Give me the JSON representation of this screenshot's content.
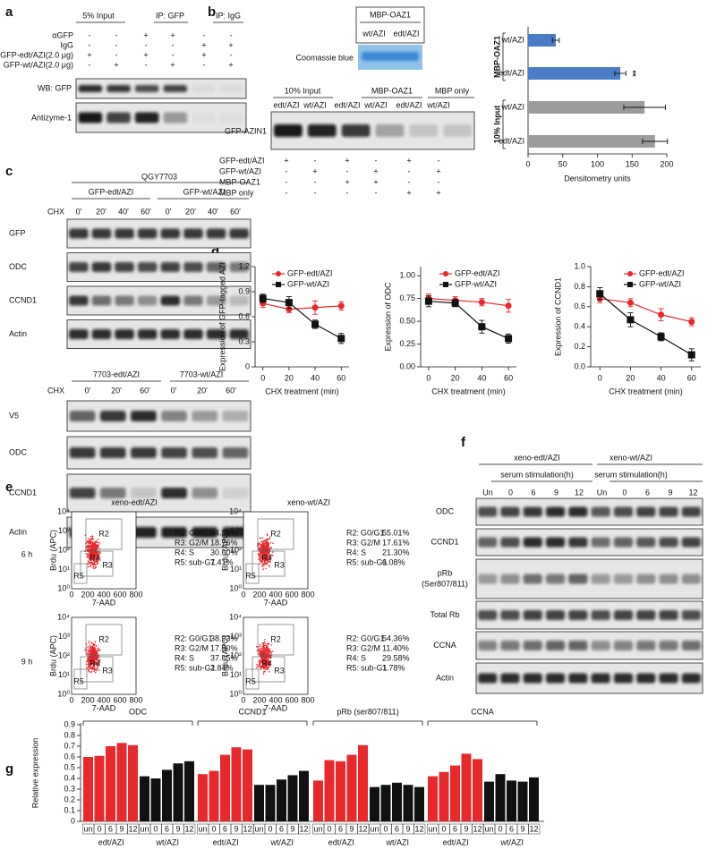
{
  "panel_labels": [
    "a",
    "b",
    "c",
    "d",
    "e",
    "f",
    "g"
  ],
  "panel_a": {
    "headers": [
      "5% Input",
      "IP: GFP",
      "IP: IgG"
    ],
    "rows": [
      {
        "label": "αGFP",
        "signs": [
          "-",
          "-",
          "+",
          "+",
          "-",
          "-"
        ]
      },
      {
        "label": "IgG",
        "signs": [
          "-",
          "-",
          "-",
          "-",
          "+",
          "+"
        ]
      },
      {
        "label": "GFP-edt/AZI(2.0 μg)",
        "signs": [
          "+",
          "-",
          "+",
          "-",
          "+",
          "-"
        ]
      },
      {
        "label": "GFP-wt/AZI(2.0 μg)",
        "signs": [
          "-",
          "+",
          "-",
          "+",
          "-",
          "+"
        ]
      }
    ],
    "blots": [
      "WB: GFP",
      "Antizyme-1"
    ]
  },
  "panel_b": {
    "gel_title": "MBP-OAZ1",
    "gel_lanes": [
      "wt/AZI",
      "edt/AZI"
    ],
    "gel_label": "Coomassie blue",
    "headers": [
      "10% Input",
      "MBP-OAZ1",
      "MBP only"
    ],
    "lanes": [
      "edt/AZI",
      "wt/AZI",
      "edt/AZI",
      "wt/AZI",
      "edt/AZI",
      "wt/AZI"
    ],
    "blot_label": "GFP-AZIN1",
    "rows": [
      {
        "label": "GFP-edt/AZI",
        "signs": [
          "+",
          "-",
          "+",
          "-",
          "+",
          "-"
        ]
      },
      {
        "label": "GFP-wt/AZI",
        "signs": [
          "-",
          "+",
          "-",
          "+",
          "-",
          "+"
        ]
      },
      {
        "label": "MBP-OAZ1",
        "signs": [
          "-",
          "-",
          "+",
          "+",
          "-",
          "-"
        ]
      },
      {
        "label": "MBP only",
        "signs": [
          "-",
          "-",
          "-",
          "-",
          "+",
          "+"
        ]
      }
    ]
  },
  "panel_c": {
    "title": "QGY7703",
    "top": {
      "groups": [
        "GFP-edt/AZI",
        "GFP-wt/AZI"
      ],
      "chx": "CHX",
      "times": [
        "0'",
        "20'",
        "40'",
        "60'",
        "0'",
        "20'",
        "40'",
        "60'"
      ],
      "blots": [
        "GFP",
        "ODC",
        "CCND1",
        "Actin"
      ]
    },
    "bottom": {
      "groups": [
        "7703-edt/AZI",
        "7703-wt/AZI"
      ],
      "chx": "CHX",
      "times": [
        "0'",
        "20'",
        "60'",
        "0'",
        "20'",
        "60'"
      ],
      "blots": [
        "V5",
        "ODC",
        "CCND1",
        "Actin"
      ]
    }
  },
  "panel_e": {
    "titles": [
      "xeno-edt/AZI",
      "xeno-wt/AZI"
    ],
    "rows": [
      "6 h",
      "9 h"
    ],
    "y_label": "Brdu (APC)",
    "x_label": "7-AAD",
    "x_ticks": [
      "0",
      "200",
      "400",
      "600",
      "800"
    ],
    "y_ticks": [
      "10⁰",
      "10¹",
      "10²",
      "10³",
      "10⁴"
    ],
    "gates": [
      "R2",
      "R3",
      "R4",
      "R5"
    ],
    "plots": [
      {
        "stats": [
          [
            "R2:",
            "G0/G1",
            "44.10%"
          ],
          [
            "R3:",
            "G2/M",
            "18.76%"
          ],
          [
            "R4:",
            "S",
            "30.60%"
          ],
          [
            "R5:",
            "sub-G1",
            "7.41%"
          ]
        ]
      },
      {
        "stats": [
          [
            "R2:",
            "G0/G1",
            "55.01%"
          ],
          [
            "R3:",
            "G2/M",
            "17.61%"
          ],
          [
            "R4:",
            "S",
            "21.30%"
          ],
          [
            "R5:",
            "sub-G1",
            "6.08%"
          ]
        ]
      },
      {
        "stats": [
          [
            "R2:",
            "G0/G1",
            "38.93%"
          ],
          [
            "R3:",
            "G2/M",
            "17.80%"
          ],
          [
            "R4:",
            "S",
            "37.65%"
          ],
          [
            "R5:",
            "sub-G1",
            "2.84%"
          ]
        ]
      },
      {
        "stats": [
          [
            "R2:",
            "G0/G1",
            "54.36%"
          ],
          [
            "R3:",
            "G2/M",
            "11.40%"
          ],
          [
            "R4:",
            "S",
            "29.58%"
          ],
          [
            "R5:",
            "sub-G1",
            "1.78%"
          ]
        ]
      }
    ]
  },
  "panel_f": {
    "headers": [
      "xeno-edt/AZI",
      "xeno-wt/AZI"
    ],
    "subheaders": [
      "serum stimulation(h)",
      "serum stimulation(h)"
    ],
    "lanes": [
      "Un",
      "0",
      "6",
      "9",
      "12",
      "Un",
      "0",
      "6",
      "9",
      "12"
    ],
    "blots": [
      [
        "ODC"
      ],
      [
        "CCND1"
      ],
      [
        "pRb",
        "(Ser807/811)"
      ],
      [
        "Total Rb"
      ],
      [
        "CCNA"
      ],
      [
        "Actin"
      ]
    ]
  },
  "chart_data": [
    {
      "type": "barh",
      "categories": [
        "wt/AZI",
        "edt/AZI",
        "wt/AZI",
        "edt/AZI"
      ],
      "group_labels": [
        "MBP-OAZ1",
        "10% Input"
      ],
      "values": [
        40,
        133,
        168,
        183
      ],
      "errors": [
        5,
        8,
        30,
        18
      ],
      "colors": [
        "#4a7cc7",
        "#4a7cc7",
        "#9c9c9c",
        "#9c9c9c"
      ],
      "annotation": "**",
      "xlabel": "Densitometry units",
      "xlim": [
        0,
        200
      ],
      "xticks": [
        0,
        50,
        100,
        150,
        200
      ]
    },
    {
      "type": "line",
      "ylabel": "Expression of GFP-tagged AZI",
      "xlabel": "CHX treatment (min)",
      "x": [
        0,
        20,
        40,
        60
      ],
      "xlim": [
        -6,
        66
      ],
      "xticks": [
        0,
        20,
        40,
        60
      ],
      "ylim": [
        0,
        1.2
      ],
      "yticks": [
        0,
        0.3,
        0.6,
        0.9,
        1.2
      ],
      "series": [
        {
          "name": "GFP-edt/AZI",
          "color": "#e8282b",
          "values": [
            0.76,
            0.69,
            0.71,
            0.73
          ],
          "errors": [
            0.05,
            0.04,
            0.08,
            0.05
          ]
        },
        {
          "name": "GFP-wt/AZI",
          "color": "#111111",
          "values": [
            0.82,
            0.77,
            0.51,
            0.34
          ],
          "errors": [
            0.05,
            0.07,
            0.05,
            0.06
          ]
        }
      ]
    },
    {
      "type": "line",
      "ylabel": "Expression of ODC",
      "xlabel": "CHX treatment (min)",
      "x": [
        0,
        20,
        40,
        60
      ],
      "xlim": [
        -6,
        66
      ],
      "xticks": [
        0,
        20,
        40,
        60
      ],
      "ylim": [
        0,
        1.1
      ],
      "yticks": [
        {
          "value": 0,
          "label": "0.00"
        },
        {
          "value": 0.25,
          "label": "0.25"
        },
        {
          "value": 0.5,
          "label": "0.50"
        },
        {
          "value": 0.75,
          "label": "0.75"
        },
        {
          "value": 1,
          "label": "1.00"
        }
      ],
      "series": [
        {
          "name": "GFP-edt/AZI",
          "color": "#e8282b",
          "values": [
            0.75,
            0.73,
            0.71,
            0.67
          ],
          "errors": [
            0.05,
            0.04,
            0.04,
            0.07
          ]
        },
        {
          "name": "GFP-wt/AZI",
          "color": "#111111",
          "values": [
            0.72,
            0.7,
            0.44,
            0.31
          ],
          "errors": [
            0.06,
            0.04,
            0.07,
            0.05
          ]
        }
      ]
    },
    {
      "type": "line",
      "ylabel": "Expression of CCND1",
      "xlabel": "CHX treatment (min)",
      "x": [
        0,
        20,
        40,
        60
      ],
      "xlim": [
        -6,
        66
      ],
      "xticks": [
        0,
        20,
        40,
        60
      ],
      "ylim": [
        0,
        1.0
      ],
      "yticks": [
        {
          "value": 0,
          "label": "0.0"
        },
        0.2,
        0.4,
        0.6,
        0.8,
        {
          "value": 1,
          "label": "1.0"
        }
      ],
      "series": [
        {
          "name": "GFP-edt/AZI",
          "color": "#e8282b",
          "values": [
            0.68,
            0.64,
            0.52,
            0.45
          ],
          "errors": [
            0.04,
            0.04,
            0.06,
            0.04
          ]
        },
        {
          "name": "GFP-wt/AZI",
          "color": "#111111",
          "values": [
            0.73,
            0.47,
            0.3,
            0.12
          ],
          "errors": [
            0.06,
            0.07,
            0.04,
            0.06
          ]
        }
      ]
    },
    {
      "type": "grouped_bar",
      "ylabel": "Relative expression",
      "ylim": [
        0,
        0.9
      ],
      "yticks": [
        0,
        0.1,
        0.2,
        0.3,
        0.4,
        0.5,
        0.6,
        0.7,
        0.8,
        0.9
      ],
      "categories": [
        "un",
        "0",
        "6",
        "9",
        "12"
      ],
      "groups": [
        {
          "name": "ODC",
          "series": [
            {
              "name": "edt/AZI",
              "color": "#e8282b",
              "values": [
                0.6,
                0.61,
                0.7,
                0.73,
                0.71
              ]
            },
            {
              "name": "wt/AZI",
              "color": "#111111",
              "values": [
                0.42,
                0.4,
                0.48,
                0.54,
                0.56
              ]
            }
          ]
        },
        {
          "name": "CCND1",
          "series": [
            {
              "name": "edt/AZI",
              "color": "#e8282b",
              "values": [
                0.44,
                0.47,
                0.62,
                0.69,
                0.67
              ]
            },
            {
              "name": "wt/AZI",
              "color": "#111111",
              "values": [
                0.34,
                0.34,
                0.39,
                0.43,
                0.47
              ]
            }
          ]
        },
        {
          "name": "pRb (ser807/811)",
          "series": [
            {
              "name": "edt/AZI",
              "color": "#e8282b",
              "values": [
                0.38,
                0.57,
                0.56,
                0.62,
                0.71
              ]
            },
            {
              "name": "wt/AZI",
              "color": "#111111",
              "values": [
                0.32,
                0.34,
                0.36,
                0.34,
                0.32
              ]
            }
          ]
        },
        {
          "name": "CCNA",
          "series": [
            {
              "name": "edt/AZI",
              "color": "#e8282b",
              "values": [
                0.42,
                0.46,
                0.52,
                0.63,
                0.58
              ]
            },
            {
              "name": "wt/AZI",
              "color": "#111111",
              "values": [
                0.37,
                0.44,
                0.38,
                0.37,
                0.41
              ]
            }
          ]
        }
      ]
    }
  ]
}
